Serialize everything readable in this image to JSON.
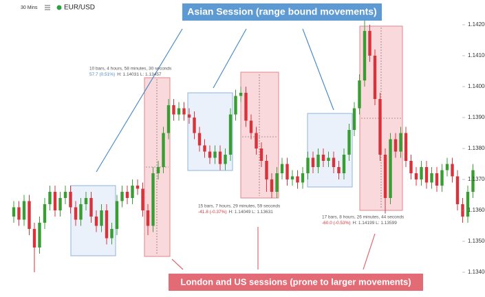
{
  "header": {
    "timeframe": "30 Mins",
    "symbol": "EUR/USD"
  },
  "chart_data": {
    "type": "candlestick",
    "up_color": "#3a9d34",
    "down_color": "#d8323b",
    "ylim": [
      1.1332,
      1.1428
    ],
    "yticks": [
      {
        "value": 1.142,
        "label": "1.14200"
      },
      {
        "value": 1.141,
        "label": "1.14100"
      },
      {
        "value": 1.14,
        "label": "1.14000"
      },
      {
        "value": 1.139,
        "label": "1.13900"
      },
      {
        "value": 1.138,
        "label": "1.13800"
      },
      {
        "value": 1.137,
        "label": "1.13700"
      },
      {
        "value": 1.136,
        "label": "1.13600"
      },
      {
        "value": 1.135,
        "label": "1.13500"
      },
      {
        "value": 1.134,
        "label": "1.13400"
      }
    ],
    "open": [
      1.1358,
      1.1361,
      1.1357,
      1.1363,
      1.1354,
      1.1348,
      1.1356,
      1.1362,
      1.1366,
      1.136,
      1.1364,
      1.1366,
      1.1361,
      1.1357,
      1.1362,
      1.1364,
      1.1358,
      1.1355,
      1.136,
      1.1351,
      1.1354,
      1.1363,
      1.1366,
      1.1364,
      1.1368,
      1.1367,
      1.136,
      1.1355,
      1.1372,
      1.1374,
      1.1385,
      1.1394,
      1.1391,
      1.1393,
      1.1391,
      1.139,
      1.1385,
      1.1381,
      1.1379,
      1.1377,
      1.1379,
      1.1375,
      1.1378,
      1.1391,
      1.1397,
      1.1398,
      1.1389,
      1.1385,
      1.138,
      1.1376,
      1.137,
      1.1366,
      1.1372,
      1.1375,
      1.137,
      1.1371,
      1.1369,
      1.1372,
      1.1377,
      1.1374,
      1.1378,
      1.1376,
      1.1377,
      1.1374,
      1.1372,
      1.1378,
      1.1386,
      1.1393,
      1.1402,
      1.1418,
      1.141,
      1.1396,
      1.1378,
      1.1364,
      1.1383,
      1.1379,
      1.1385,
      1.1376,
      1.1372,
      1.137,
      1.1374,
      1.1369,
      1.1372,
      1.1368,
      1.1373,
      1.1375,
      1.1371,
      1.1362,
      1.1358,
      1.1366
    ],
    "close": [
      1.1361,
      1.1357,
      1.1363,
      1.1354,
      1.1348,
      1.1356,
      1.1362,
      1.1366,
      1.136,
      1.1364,
      1.1366,
      1.1361,
      1.1357,
      1.1362,
      1.1364,
      1.1358,
      1.1355,
      1.136,
      1.1351,
      1.1354,
      1.1363,
      1.1366,
      1.1364,
      1.1368,
      1.1367,
      1.136,
      1.1355,
      1.1372,
      1.1374,
      1.1385,
      1.1394,
      1.1391,
      1.1393,
      1.1391,
      1.139,
      1.1385,
      1.1381,
      1.1379,
      1.1377,
      1.1379,
      1.1375,
      1.1378,
      1.1391,
      1.1397,
      1.1398,
      1.1389,
      1.1385,
      1.138,
      1.1376,
      1.137,
      1.1366,
      1.1372,
      1.1375,
      1.137,
      1.1371,
      1.1369,
      1.1372,
      1.1377,
      1.1374,
      1.1378,
      1.1376,
      1.1377,
      1.1374,
      1.1372,
      1.1378,
      1.1386,
      1.1393,
      1.1402,
      1.1418,
      1.141,
      1.1396,
      1.1378,
      1.1364,
      1.1383,
      1.1379,
      1.1385,
      1.1376,
      1.1372,
      1.137,
      1.1374,
      1.1369,
      1.1372,
      1.1368,
      1.1373,
      1.1375,
      1.1371,
      1.1362,
      1.1358,
      1.1366,
      1.1373
    ],
    "high": [
      1.1363,
      1.1363,
      1.1365,
      1.1365,
      1.1356,
      1.1358,
      1.1364,
      1.1368,
      1.1368,
      1.1366,
      1.1368,
      1.1368,
      1.1363,
      1.1364,
      1.1366,
      1.1366,
      1.136,
      1.1362,
      1.1362,
      1.1356,
      1.1365,
      1.1368,
      1.1368,
      1.137,
      1.137,
      1.1369,
      1.1362,
      1.1374,
      1.1376,
      1.1387,
      1.1396,
      1.1396,
      1.1395,
      1.1395,
      1.1393,
      1.1392,
      1.1387,
      1.1383,
      1.1381,
      1.1381,
      1.1381,
      1.138,
      1.1393,
      1.1399,
      1.14,
      1.14,
      1.1391,
      1.1387,
      1.1382,
      1.1378,
      1.1372,
      1.1374,
      1.1377,
      1.1377,
      1.1373,
      1.1373,
      1.1374,
      1.1379,
      1.1379,
      1.138,
      1.138,
      1.1379,
      1.1379,
      1.1376,
      1.138,
      1.1388,
      1.1395,
      1.1404,
      1.1422,
      1.142,
      1.1412,
      1.1398,
      1.138,
      1.1385,
      1.1385,
      1.1387,
      1.1387,
      1.1378,
      1.1374,
      1.1376,
      1.1376,
      1.1374,
      1.1374,
      1.1375,
      1.1377,
      1.1377,
      1.1373,
      1.1364,
      1.1368,
      1.1375
    ],
    "low": [
      1.1356,
      1.1355,
      1.1355,
      1.1352,
      1.134,
      1.1346,
      1.1354,
      1.136,
      1.1358,
      1.1358,
      1.1362,
      1.1359,
      1.1355,
      1.1355,
      1.136,
      1.1356,
      1.1353,
      1.1353,
      1.1349,
      1.1349,
      1.1352,
      1.1361,
      1.1362,
      1.1362,
      1.1365,
      1.1358,
      1.1352,
      1.1353,
      1.137,
      1.1372,
      1.1383,
      1.1389,
      1.1389,
      1.1389,
      1.1388,
      1.1383,
      1.1379,
      1.1377,
      1.1375,
      1.1375,
      1.1373,
      1.1373,
      1.1376,
      1.1389,
      1.1395,
      1.1387,
      1.1383,
      1.1378,
      1.1374,
      1.1366,
      1.1364,
      1.1364,
      1.137,
      1.1368,
      1.1368,
      1.1367,
      1.1367,
      1.137,
      1.1372,
      1.1372,
      1.1374,
      1.1374,
      1.1372,
      1.137,
      1.137,
      1.1376,
      1.1384,
      1.1391,
      1.14,
      1.1408,
      1.1394,
      1.1376,
      1.1359,
      1.1362,
      1.1377,
      1.1377,
      1.1374,
      1.137,
      1.1368,
      1.1368,
      1.1367,
      1.1367,
      1.1366,
      1.1366,
      1.1371,
      1.1369,
      1.136,
      1.1356,
      1.1356,
      1.1364
    ],
    "annotations": {
      "asian": "Asian Session (range bound movements)",
      "london_us": "London and US sessions (prone to larger movements)"
    },
    "measurements": [
      {
        "duration": "10 bars, 4 hours, 58 minutes, 30 seconds",
        "change": "57.7 (0.51%)",
        "range": "H: 1.14031 L: 1.13457"
      },
      {
        "duration": "15 bars, 7 hours, 29 minutes, 59 seconds",
        "change": "-41.8 (-0.37%)",
        "range": "H: 1.14049 L: 1.13631"
      },
      {
        "duration": "17 bars, 8 hours, 26 minutes, 44 seconds",
        "change": "-60.0 (-0.53%)",
        "range": "H: 1.14199 L: 1.13599"
      }
    ]
  }
}
